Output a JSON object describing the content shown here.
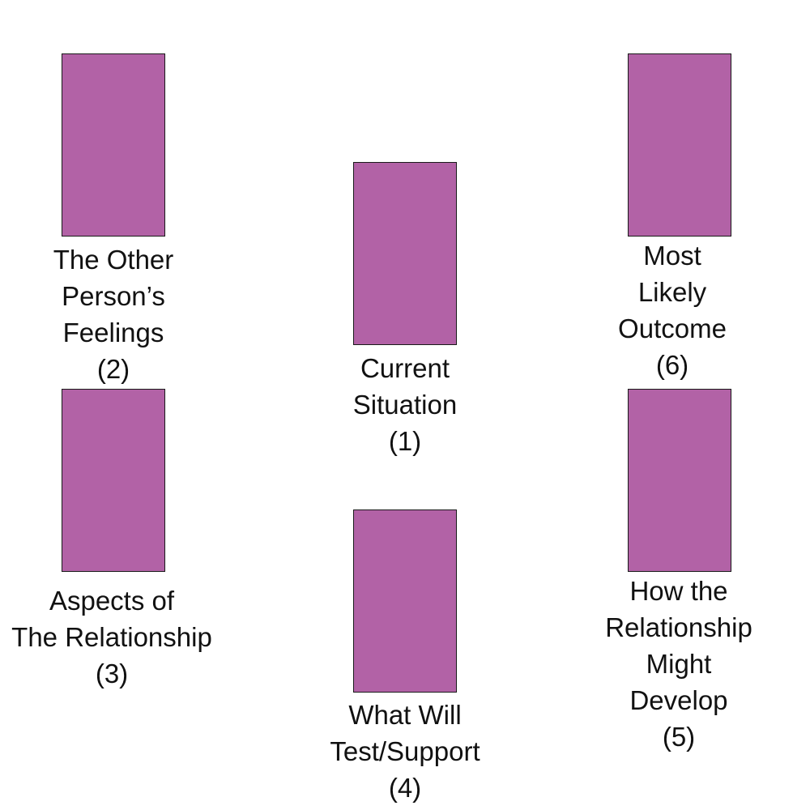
{
  "spread": {
    "card_color": "#b262a6",
    "positions": [
      {
        "id": "1",
        "lines": [
          "Current",
          "Situation",
          "(1)"
        ]
      },
      {
        "id": "2",
        "lines": [
          "The Other",
          "Person’s",
          "Feelings",
          "(2)"
        ]
      },
      {
        "id": "3",
        "lines": [
          "Aspects of",
          "The Relationship",
          "(3)"
        ]
      },
      {
        "id": "4",
        "lines": [
          "What Will",
          "Test/Support",
          "(4)"
        ]
      },
      {
        "id": "5",
        "lines": [
          "How the",
          "Relationship",
          "Might",
          "Develop",
          "(5)"
        ]
      },
      {
        "id": "6",
        "lines": [
          "Most",
          "Likely",
          "Outcome",
          "(6)"
        ]
      }
    ]
  }
}
